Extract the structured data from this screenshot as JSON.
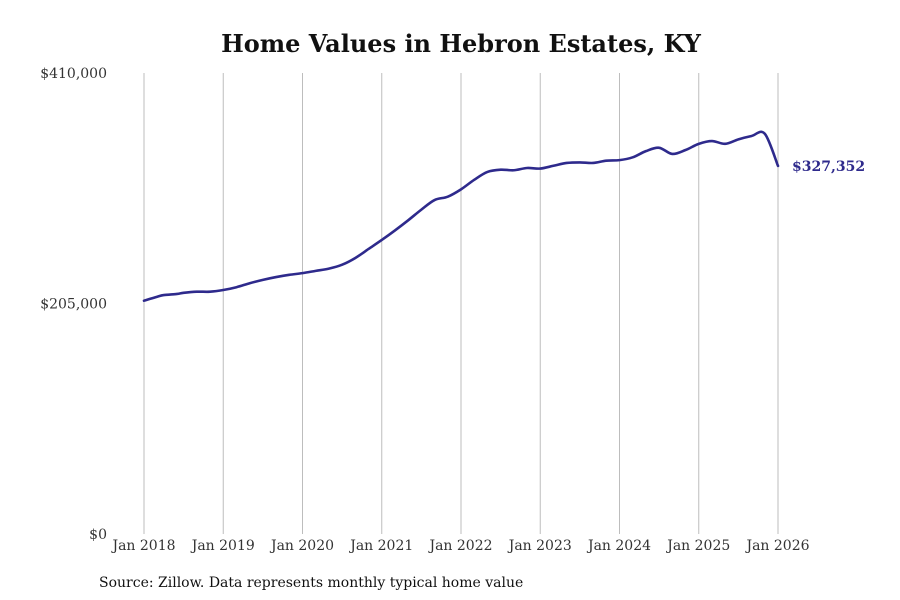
{
  "chart_data": {
    "type": "line",
    "title": "Home Values in Hebron Estates, KY",
    "xlabel": "",
    "ylabel": "",
    "x_tick_labels": [
      "Jan 2018",
      "Jan 2019",
      "Jan 2020",
      "Jan 2021",
      "Jan 2022",
      "Jan 2023",
      "Jan 2024",
      "Jan 2025",
      "Jan 2026"
    ],
    "y_tick_labels": [
      "$0",
      "$205,000",
      "$410,000"
    ],
    "y_ticks": [
      0,
      205000,
      410000
    ],
    "ylim": [
      0,
      410000
    ],
    "x_start": "Jan 2018",
    "x_end": "Jan 2026",
    "grid": "vertical",
    "line_color": "#2e2a8c",
    "series": [
      {
        "name": "Typical home value",
        "x_month_offset": [
          0,
          2,
          3,
          5,
          6,
          8,
          10,
          12,
          14,
          16,
          18,
          20,
          22,
          24,
          26,
          28,
          30,
          32,
          34,
          36,
          38,
          40,
          42,
          44,
          46,
          48,
          50,
          52,
          54,
          56,
          58,
          60,
          62,
          64,
          66,
          68,
          70,
          72,
          74,
          76,
          78,
          80,
          82,
          84,
          86,
          88,
          90,
          92,
          94,
          96
        ],
        "values": [
          207500,
          211000,
          212500,
          213500,
          214500,
          215500,
          215500,
          217000,
          219500,
          223000,
          226000,
          228500,
          230500,
          232000,
          234000,
          236000,
          239500,
          245500,
          253500,
          261500,
          270000,
          279000,
          288500,
          297000,
          300000,
          306500,
          315000,
          322000,
          324000,
          323500,
          325500,
          325000,
          327500,
          330000,
          330500,
          330000,
          332000,
          332500,
          335000,
          340500,
          343500,
          338000,
          341500,
          347000,
          349500,
          347000,
          351000,
          354000,
          356000,
          327352
        ]
      }
    ],
    "end_label": "$327,352"
  },
  "source_note": "Source: Zillow. Data represents monthly typical home value"
}
